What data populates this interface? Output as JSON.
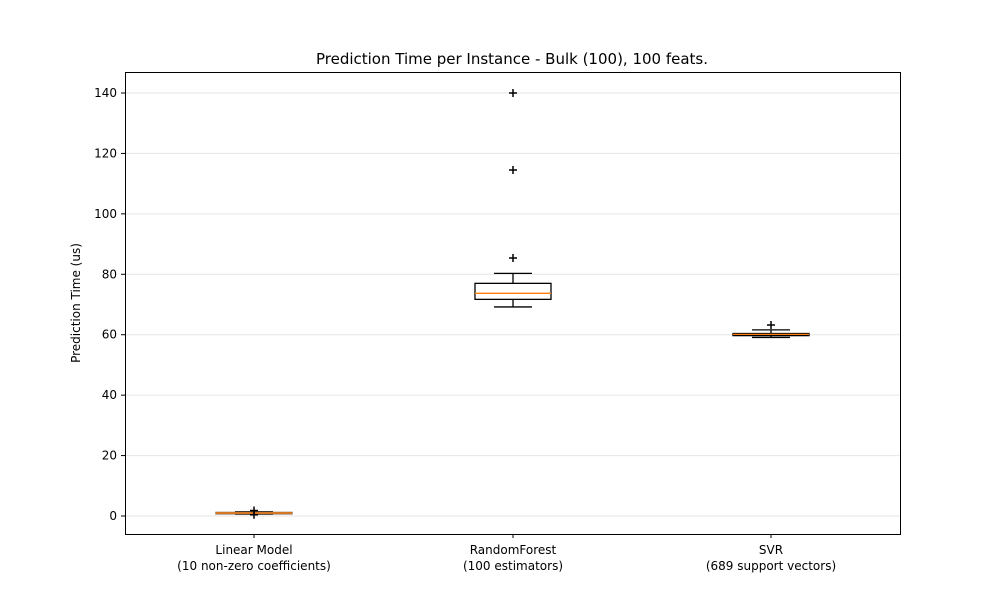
{
  "chart_data": {
    "type": "boxplot",
    "title": "Prediction Time per Instance - Bulk (100), 100 feats.",
    "xlabel": "",
    "ylabel": "Prediction Time (us)",
    "ylim": [
      -6,
      147
    ],
    "yticks": [
      0,
      20,
      40,
      60,
      80,
      100,
      120,
      140
    ],
    "grid": "y",
    "categories": [
      "Linear Model\n(10 non-zero coefficients)",
      "RandomForest\n(100 estimators)",
      "SVR\n(689 support vectors)"
    ],
    "boxes": [
      {
        "whislo": 0.6,
        "q1": 0.8,
        "med": 1.0,
        "q3": 1.2,
        "whishi": 1.4,
        "fliers": [
          1.8,
          0.4
        ]
      },
      {
        "whislo": 69.2,
        "q1": 71.7,
        "med": 73.7,
        "q3": 77.0,
        "whishi": 80.3,
        "fliers": [
          85.4,
          114.5,
          140.0
        ]
      },
      {
        "whislo": 59.1,
        "q1": 59.7,
        "med": 60.1,
        "q3": 60.4,
        "whishi": 61.6,
        "fliers": [
          63.2
        ]
      }
    ],
    "colors": {
      "box": "#000000",
      "median": "#ff7f0e",
      "grid": "#e6e6e6",
      "svr_fill": "#ff7f0e"
    }
  }
}
